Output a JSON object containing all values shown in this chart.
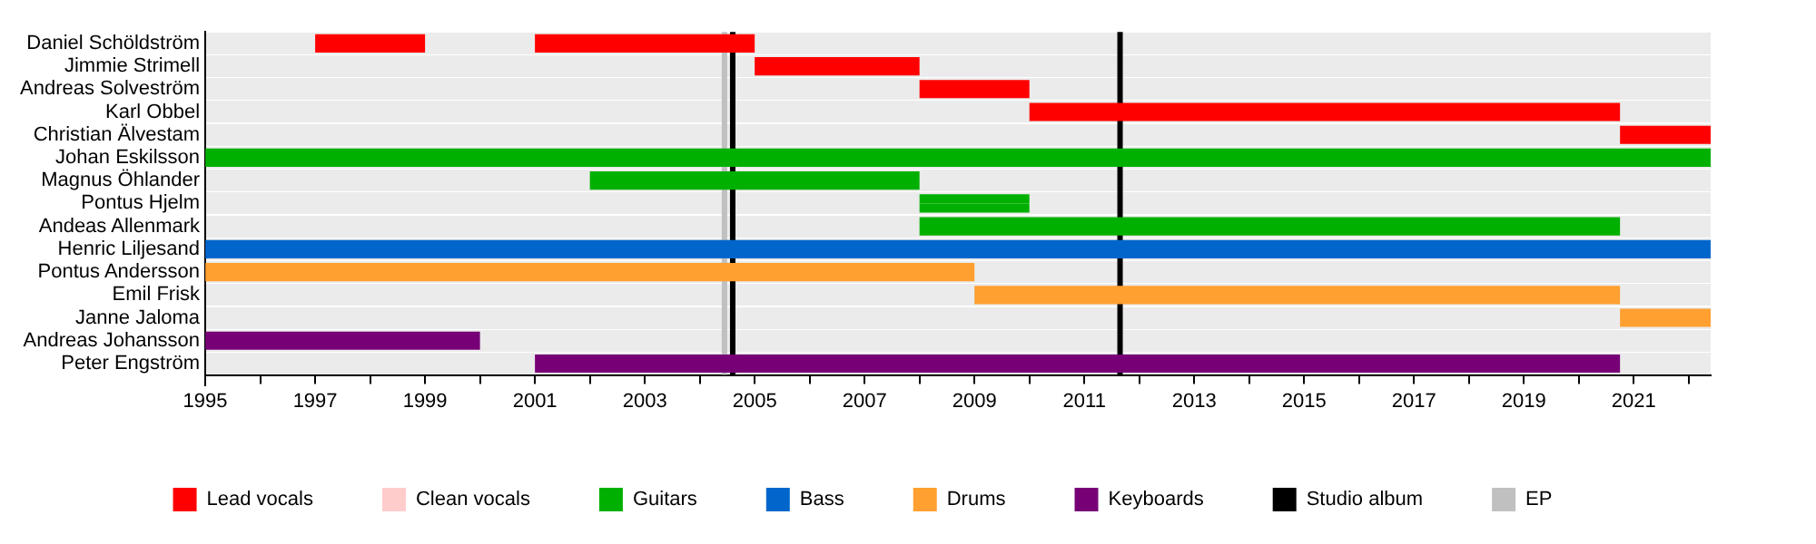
{
  "chart_data": {
    "type": "bar",
    "orientation": "horizontal",
    "categories": [
      "Daniel Schöldström",
      "Jimmie Strimell",
      "Andreas Solveström",
      "Karl Obbel",
      "Christian Älvestam",
      "Johan Eskilsson",
      "Magnus Öhlander",
      "Pontus Hjelm",
      "Andeas Allenmark",
      "Henric Liljesand",
      "Pontus Andersson",
      "Emil Frisk",
      "Janne Jaloma",
      "Andreas Johansson",
      "Peter Engström"
    ],
    "series": [
      {
        "name": "Lead vocals",
        "color": "#ff0000",
        "base": [
          1997,
          2005,
          2008,
          2010,
          2020.75,
          null,
          null,
          null,
          null,
          null,
          null,
          null,
          null,
          null,
          null
        ],
        "values": [
          2,
          3,
          2,
          10.75,
          1.65,
          null,
          null,
          null,
          null,
          null,
          null,
          null,
          null,
          null,
          null
        ]
      },
      {
        "color": "#ff0000",
        "base": [
          2001,
          null,
          null,
          null,
          null,
          null,
          null,
          null,
          null,
          null,
          null,
          null,
          null,
          null,
          null
        ],
        "values": [
          4,
          null,
          null,
          null,
          null,
          null,
          null,
          null,
          null,
          null,
          null,
          null,
          null,
          null,
          null
        ]
      },
      {
        "name": "Clean vocals",
        "color": "#ffcccc",
        "base": [
          null,
          null,
          null,
          null,
          null,
          null,
          null,
          null,
          null,
          null,
          null,
          null,
          null,
          null,
          null
        ],
        "values": [
          null,
          null,
          null,
          null,
          null,
          null,
          null,
          null,
          null,
          null,
          null,
          null,
          null,
          null,
          null
        ]
      },
      {
        "name": "Guitars",
        "color": "#00b000",
        "base": [
          null,
          null,
          null,
          null,
          null,
          null,
          2002,
          null,
          2008,
          null,
          null,
          null,
          null,
          null,
          null
        ],
        "values": [
          null,
          null,
          null,
          null,
          null,
          null,
          6,
          null,
          12.75,
          null,
          null,
          null,
          null,
          null,
          null
        ]
      },
      {
        "color": "#00b000",
        "base": [
          null,
          null,
          null,
          null,
          null,
          1995,
          null,
          2008,
          null,
          null,
          null,
          null,
          null,
          null,
          null
        ],
        "values": [
          null,
          null,
          null,
          null,
          null,
          27.4,
          null,
          2,
          null,
          null,
          null,
          null,
          null,
          null,
          null
        ]
      },
      {
        "color": "#00b000",
        "base": [
          null,
          null,
          null,
          null,
          null,
          1995,
          null,
          2008,
          null,
          null,
          null,
          null,
          null,
          null,
          null
        ],
        "values": [
          null,
          null,
          null,
          null,
          null,
          27.4,
          null,
          2,
          null,
          null,
          null,
          null,
          null,
          null,
          null
        ]
      },
      {
        "name": "Bass",
        "color": "#0066cc",
        "base": [
          null,
          null,
          null,
          null,
          null,
          null,
          null,
          null,
          null,
          1995,
          null,
          null,
          null,
          null,
          null
        ],
        "values": [
          null,
          null,
          null,
          null,
          null,
          null,
          null,
          null,
          null,
          27.4,
          null,
          null,
          null,
          null,
          null
        ]
      },
      {
        "name": "Drums",
        "color": "#ffa030",
        "base": [
          null,
          null,
          null,
          null,
          null,
          null,
          null,
          null,
          null,
          null,
          1995,
          2009,
          2020.75,
          null,
          null
        ],
        "values": [
          null,
          null,
          null,
          null,
          null,
          null,
          null,
          null,
          null,
          null,
          14,
          11.75,
          1.65,
          null,
          null
        ]
      },
      {
        "name": "Keyboards",
        "color": "#770077",
        "base": [
          null,
          null,
          null,
          null,
          null,
          null,
          null,
          null,
          null,
          null,
          null,
          null,
          null,
          1995,
          2001
        ],
        "values": [
          null,
          null,
          null,
          null,
          null,
          null,
          null,
          null,
          null,
          null,
          null,
          null,
          null,
          5,
          19.75
        ]
      }
    ],
    "xlim": [
      1995,
      2022.4
    ],
    "xticks": [
      1995,
      {
        "value": 1996,
        "label": null
      },
      1997,
      {
        "value": 1998,
        "label": null
      },
      1999,
      {
        "value": 2000,
        "label": null
      },
      2001,
      {
        "value": 2002,
        "label": null
      },
      2003,
      {
        "value": 2004,
        "label": null
      },
      2005,
      {
        "value": 2006,
        "label": null
      },
      2007,
      {
        "value": 2008,
        "label": null
      },
      2009,
      {
        "value": 2010,
        "label": null
      },
      2011,
      {
        "value": 2012,
        "label": null
      },
      2013,
      {
        "value": 2014,
        "label": null
      },
      2015,
      {
        "value": 2016,
        "label": null
      },
      2017,
      {
        "value": 2018,
        "label": null
      },
      2019,
      {
        "value": 2020,
        "label": null
      },
      2021,
      {
        "value": 2022,
        "label": null
      }
    ],
    "ref_lines": [
      {
        "axis": "x",
        "value": 2004.45,
        "label": "EP",
        "color": "#c0c0c0"
      },
      {
        "axis": "x",
        "value": 2004.6,
        "label": "Studio album",
        "color": "#000000"
      },
      {
        "axis": "x",
        "value": 2011.65,
        "color": "#000000"
      }
    ],
    "grid": "y",
    "legend": "bottom"
  }
}
